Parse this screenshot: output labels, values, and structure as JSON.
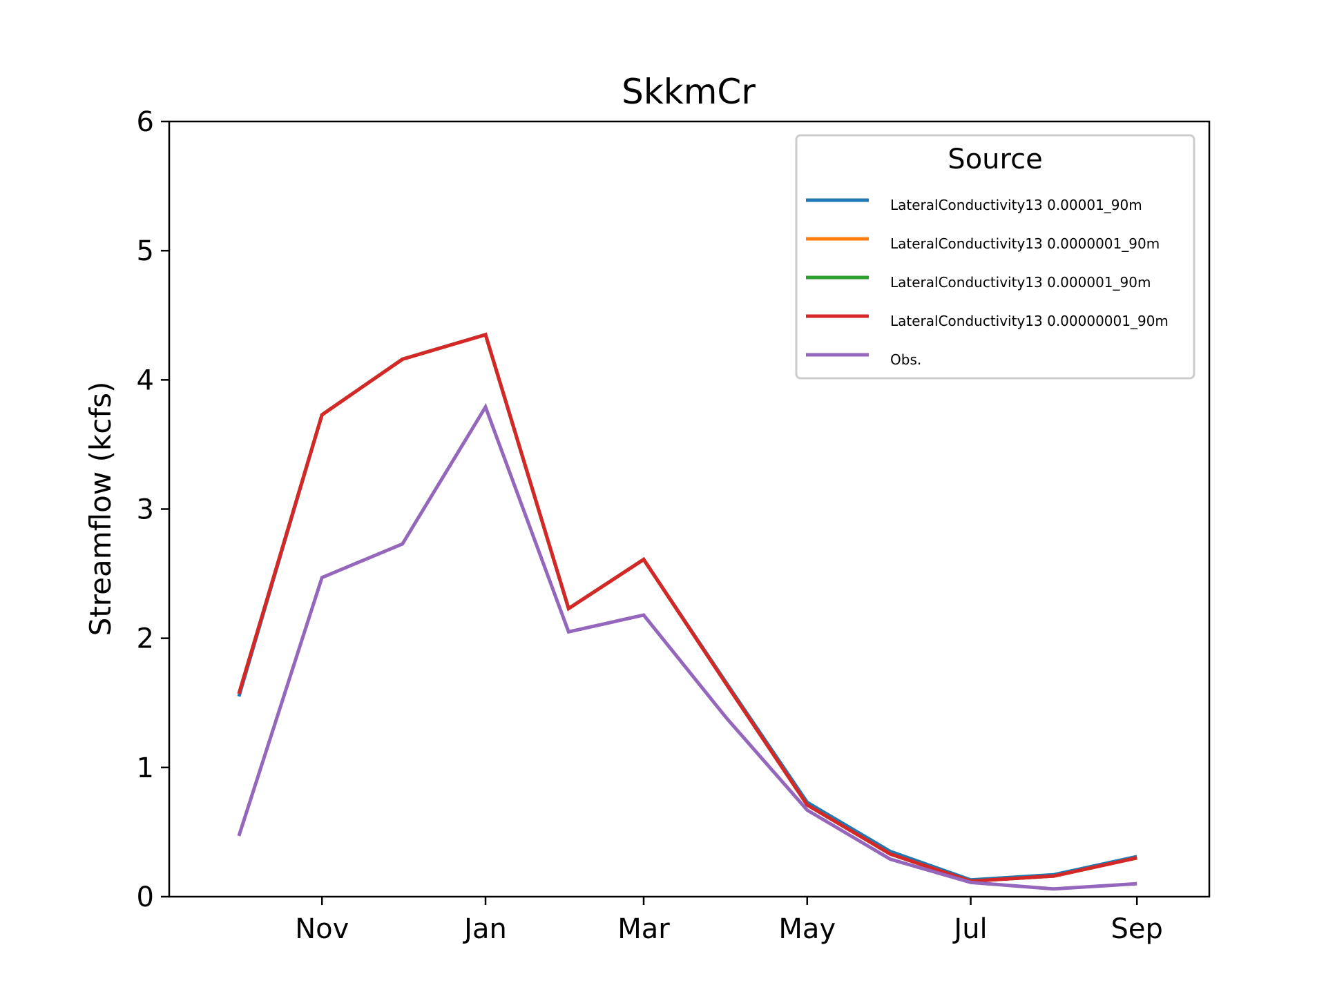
{
  "chart_data": {
    "type": "line",
    "title": "SkkmCr",
    "xlabel": "",
    "ylabel": "Streamflow (kcfs)",
    "ylim": [
      0,
      6
    ],
    "yticks": [
      "0",
      "1",
      "2",
      "3",
      "4",
      "5",
      "6"
    ],
    "xticks": [
      "Nov",
      "Jan",
      "Mar",
      "May",
      "Jul",
      "Sep"
    ],
    "xtick_dates": [
      "2000-11-01",
      "2001-01-01",
      "2001-03-01",
      "2001-05-01",
      "2001-07-01",
      "2001-09-01"
    ],
    "xlim_dates": [
      "2000-09-05",
      "2001-09-28"
    ],
    "x": [
      "2000-10-01",
      "2000-11-01",
      "2000-12-01",
      "2001-01-01",
      "2001-02-01",
      "2001-03-01",
      "2001-04-01",
      "2001-05-01",
      "2001-06-01",
      "2001-07-01",
      "2001-08-01",
      "2001-09-01"
    ],
    "grid": false,
    "legend": {
      "title": "Source",
      "placement": "upper right"
    },
    "series": [
      {
        "name": "LateralConductivity13 0.00001_90m",
        "color": "#1f77b4",
        "values": [
          1.55,
          3.73,
          4.16,
          4.35,
          2.23,
          2.61,
          1.65,
          0.73,
          0.35,
          0.13,
          0.17,
          0.31
        ]
      },
      {
        "name": "LateralConductivity13 0.0000001_90m",
        "color": "#ff7f0e",
        "values": [
          1.57,
          3.73,
          4.16,
          4.35,
          2.23,
          2.61,
          1.64,
          0.71,
          0.33,
          0.12,
          0.16,
          0.3
        ]
      },
      {
        "name": "LateralConductivity13 0.000001_90m",
        "color": "#2ca02c",
        "values": [
          1.57,
          3.73,
          4.16,
          4.35,
          2.23,
          2.61,
          1.64,
          0.71,
          0.33,
          0.12,
          0.16,
          0.3
        ]
      },
      {
        "name": "LateralConductivity13 0.00000001_90m",
        "color": "#d62728",
        "values": [
          1.57,
          3.73,
          4.16,
          4.35,
          2.23,
          2.61,
          1.64,
          0.71,
          0.33,
          0.12,
          0.16,
          0.3
        ]
      },
      {
        "name": "Obs.",
        "color": "#9467bd",
        "values": [
          0.47,
          2.47,
          2.73,
          3.79,
          2.05,
          2.18,
          1.38,
          0.67,
          0.29,
          0.11,
          0.06,
          0.1
        ]
      }
    ]
  }
}
